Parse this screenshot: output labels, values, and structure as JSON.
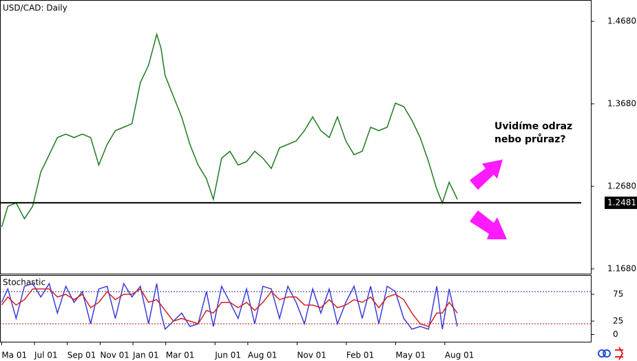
{
  "chart_data": [
    {
      "type": "line",
      "title": "USD/CAD: Daily",
      "annotation": [
        "Uvidíme odraz",
        "nebo průraz?"
      ],
      "xlim": [
        -0.1,
        35.9
      ],
      "ylim": [
        1.1622,
        1.4938
      ],
      "yticks": [
        {
          "value": 1.468,
          "label": "1.4680"
        },
        {
          "value": 1.368,
          "label": "1.3680"
        },
        {
          "value": 1.268,
          "label": "1.2680"
        },
        {
          "value": 1.168,
          "label": "1.1680"
        }
      ],
      "level": 1.2481,
      "level_color": "#000000",
      "series": [
        {
          "color": "#1f7a1f",
          "x": [
            0,
            0.38,
            0.88,
            1.39,
            1.89,
            2.39,
            2.9,
            3.4,
            3.91,
            4.41,
            4.92,
            5.42,
            5.92,
            6.43,
            6.93,
            7.44,
            7.94,
            8.45,
            8.95,
            9.45,
            9.71,
            9.96,
            10.46,
            10.97,
            11.47,
            11.97,
            12.48,
            12.9,
            13.4,
            13.91,
            14.41,
            14.92,
            15.42,
            15.92,
            16.43,
            16.93,
            17.44,
            17.94,
            18.45,
            18.95,
            19.45,
            19.96,
            20.46,
            20.97,
            21.47,
            21.97,
            22.48,
            22.98,
            23.49,
            23.99,
            24.5,
            25,
            25.5,
            26.01,
            26.51,
            26.85,
            27.27,
            27.77
          ],
          "values": [
            1.2188,
            1.2438,
            1.248,
            1.2288,
            1.2438,
            1.2855,
            1.3063,
            1.3272,
            1.3313,
            1.3272,
            1.3313,
            1.3272,
            1.2938,
            1.3188,
            1.3355,
            1.3397,
            1.3438,
            1.3938,
            1.4147,
            1.4522,
            1.4355,
            1.4022,
            1.3772,
            1.3522,
            1.3188,
            1.2938,
            1.2772,
            1.2522,
            1.3022,
            1.3105,
            1.2938,
            1.298,
            1.3105,
            1.3022,
            1.2897,
            1.3147,
            1.3188,
            1.323,
            1.3355,
            1.3522,
            1.3355,
            1.3272,
            1.3522,
            1.323,
            1.3063,
            1.3105,
            1.3397,
            1.3355,
            1.3397,
            1.3688,
            1.3647,
            1.348,
            1.3272,
            1.298,
            1.2647,
            1.248,
            1.273,
            1.2522
          ]
        }
      ]
    },
    {
      "type": "line",
      "title": "Stochastic",
      "xlim": [
        -0.1,
        35.9
      ],
      "ylim": [
        -13.5,
        110.9
      ],
      "xticks": [
        {
          "value": 0,
          "label": "Ma 01"
        },
        {
          "value": 2,
          "label": "Jul 01"
        },
        {
          "value": 4,
          "label": "Sep 01"
        },
        {
          "value": 6,
          "label": "Nov 01"
        },
        {
          "value": 8,
          "label": "Jan 01"
        },
        {
          "value": 10,
          "label": "Mar 01"
        },
        {
          "value": 13,
          "label": "Jun 01"
        },
        {
          "value": 15,
          "label": "Aug 01"
        },
        {
          "value": 18,
          "label": "Nov 01"
        },
        {
          "value": 21,
          "label": "Feb 01"
        },
        {
          "value": 24,
          "label": "May 01"
        },
        {
          "value": 27,
          "label": "Aug 01"
        }
      ],
      "yticks": [
        75,
        25,
        0
      ],
      "levels": [
        {
          "value": 80,
          "color": "#2020c0"
        },
        {
          "value": 20,
          "color": "#d00000"
        }
      ],
      "series": [
        {
          "color": "#3a3ad8",
          "x": [
            0,
            0.38,
            0.88,
            1.39,
            1.89,
            2.39,
            2.9,
            3.4,
            3.91,
            4.41,
            4.92,
            5.42,
            5.92,
            6.43,
            6.93,
            7.44,
            7.94,
            8.45,
            8.95,
            9.45,
            9.71,
            9.96,
            10.46,
            10.97,
            11.47,
            11.97,
            12.48,
            12.9,
            13.4,
            13.91,
            14.41,
            14.92,
            15.42,
            15.92,
            16.43,
            16.93,
            17.44,
            17.94,
            18.45,
            18.95,
            19.45,
            19.96,
            20.46,
            20.97,
            21.47,
            21.97,
            22.48,
            22.98,
            23.49,
            23.99,
            24.5,
            25,
            25.5,
            26.01,
            26.51,
            26.85,
            27.27,
            27.77
          ],
          "values": [
            60,
            85,
            30,
            90,
            95,
            70,
            95,
            40,
            90,
            60,
            80,
            20,
            85,
            90,
            30,
            95,
            70,
            90,
            20,
            95,
            40,
            10,
            25,
            40,
            15,
            20,
            80,
            15,
            90,
            60,
            30,
            85,
            20,
            90,
            85,
            30,
            90,
            60,
            20,
            85,
            40,
            85,
            20,
            60,
            90,
            30,
            90,
            20,
            90,
            80,
            30,
            10,
            15,
            10,
            90,
            10,
            85,
            15
          ]
        },
        {
          "color": "#d02020",
          "x": [
            0,
            0.38,
            0.88,
            1.39,
            1.89,
            2.39,
            2.9,
            3.4,
            3.91,
            4.41,
            4.92,
            5.42,
            5.92,
            6.43,
            6.93,
            7.44,
            7.94,
            8.45,
            8.95,
            9.45,
            9.71,
            9.96,
            10.46,
            10.97,
            11.47,
            11.97,
            12.48,
            12.9,
            13.4,
            13.91,
            14.41,
            14.92,
            15.42,
            15.92,
            16.43,
            16.93,
            17.44,
            17.94,
            18.45,
            18.95,
            19.45,
            19.96,
            20.46,
            20.97,
            21.47,
            21.97,
            22.48,
            22.98,
            23.49,
            23.99,
            24.5,
            25,
            25.5,
            26.01,
            26.51,
            26.85,
            27.27,
            27.77
          ],
          "values": [
            55,
            70,
            55,
            65,
            85,
            85,
            85,
            70,
            75,
            65,
            75,
            50,
            60,
            80,
            65,
            75,
            75,
            85,
            60,
            65,
            55,
            45,
            25,
            30,
            25,
            20,
            45,
            40,
            60,
            60,
            50,
            60,
            45,
            60,
            80,
            65,
            70,
            70,
            55,
            55,
            50,
            65,
            50,
            55,
            65,
            60,
            70,
            50,
            70,
            75,
            65,
            40,
            20,
            15,
            40,
            40,
            60,
            40
          ]
        }
      ]
    }
  ]
}
